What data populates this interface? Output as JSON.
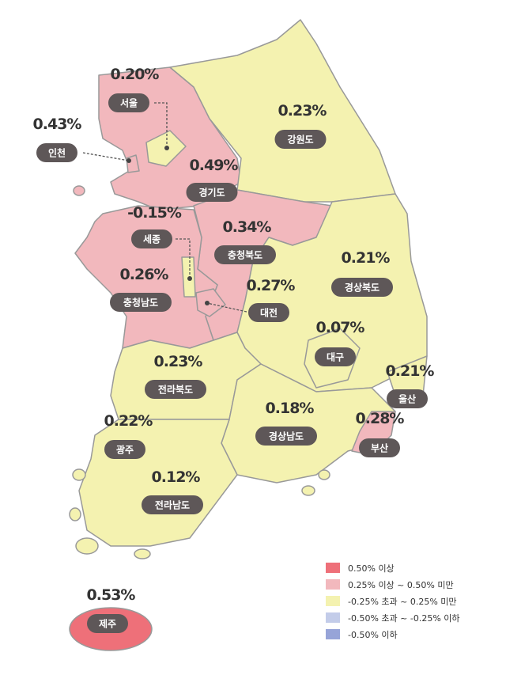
{
  "regions": [
    {
      "name": "서울",
      "value": "0.20%",
      "color": "#f4f2b0"
    },
    {
      "name": "인천",
      "value": "0.43%",
      "color": "#f2b8bd"
    },
    {
      "name": "경기도",
      "value": "0.49%",
      "color": "#f2b8bd"
    },
    {
      "name": "강원도",
      "value": "0.23%",
      "color": "#f4f2b0"
    },
    {
      "name": "세종",
      "value": "-0.15%",
      "color": "#f4f2b0"
    },
    {
      "name": "충청북도",
      "value": "0.34%",
      "color": "#f2b8bd"
    },
    {
      "name": "충청남도",
      "value": "0.26%",
      "color": "#f2b8bd"
    },
    {
      "name": "대전",
      "value": "0.27%",
      "color": "#f2b8bd"
    },
    {
      "name": "경상북도",
      "value": "0.21%",
      "color": "#f4f2b0"
    },
    {
      "name": "대구",
      "value": "0.07%",
      "color": "#f4f2b0"
    },
    {
      "name": "울산",
      "value": "0.21%",
      "color": "#f4f2b0"
    },
    {
      "name": "전라북도",
      "value": "0.23%",
      "color": "#f4f2b0"
    },
    {
      "name": "경상남도",
      "value": "0.18%",
      "color": "#f4f2b0"
    },
    {
      "name": "부산",
      "value": "0.28%",
      "color": "#f2b8bd"
    },
    {
      "name": "광주",
      "value": "0.22%",
      "color": "#f4f2b0"
    },
    {
      "name": "전라남도",
      "value": "0.12%",
      "color": "#f4f2b0"
    },
    {
      "name": "제주",
      "value": "0.53%",
      "color": "#ee7079"
    }
  ],
  "legend": [
    {
      "label": "0.50% 이상",
      "color": "#ee7079"
    },
    {
      "label": "0.25% 이상 ~ 0.50% 미만",
      "color": "#f2b8bd"
    },
    {
      "label": "-0.25% 초과 ~ 0.25% 미만",
      "color": "#f4f2b0"
    },
    {
      "label": "-0.50% 초과 ~ -0.25% 이하",
      "color": "#c3cce9"
    },
    {
      "label": "-0.50% 이하",
      "color": "#97a4d8"
    }
  ]
}
